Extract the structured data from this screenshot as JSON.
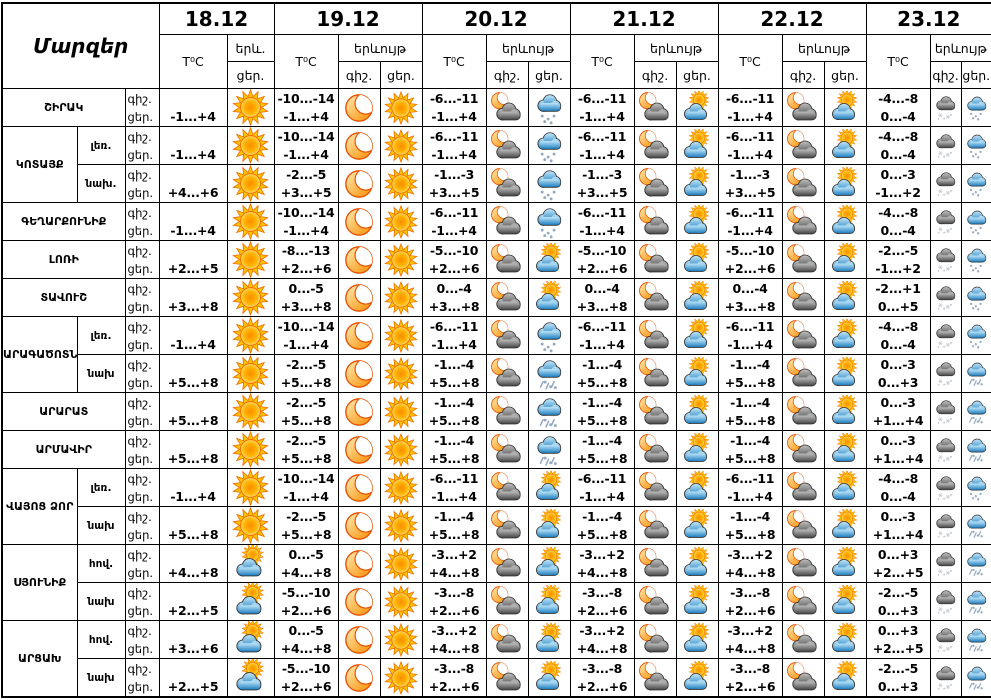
{
  "table": {
    "regions_label": "Մարզեր",
    "dates": [
      "18.12",
      "19.12",
      "20.12",
      "21.12",
      "22.12",
      "23.12"
    ],
    "temp_label": "T⁰C",
    "phenom_label": "երևույթ",
    "phenom_short": "երև.",
    "night_label": "գիշ.",
    "day_label": "ցեր.",
    "icon_legend": {
      "sun": "clear-sun",
      "moon": "clear-moon",
      "sun-cloud": "partly-cloudy-day",
      "moon-cloud": "partly-cloudy-night",
      "snow-blue": "snow-day-cloud",
      "sleet-blue": "sleet-day-cloud",
      "snow-dark": "snow-night-cloud"
    },
    "colors": {
      "sun": "#FFB300",
      "cloud_blue": "#2186C8",
      "cloud_dark": "#545454",
      "border": "#000000"
    },
    "groups": [
      {
        "region": "ՇԻՐԱԿ",
        "rows": [
          {
            "sub": "",
            "cells": [
              [
                "",
                "-1...+4",
                "",
                "sun"
              ],
              [
                "-10...-14",
                "-1...+4",
                "moon",
                "sun"
              ],
              [
                "-6...-11",
                "-1...+4",
                "moon-cloud",
                "snow-blue"
              ],
              [
                "-6...-11",
                "-1...+4",
                "moon-cloud",
                "sun-cloud"
              ],
              [
                "-6...-11",
                "-1...+4",
                "moon-cloud",
                "sun-cloud"
              ],
              [
                "-4...-8",
                "0...-4",
                "snow-dark",
                "snow-blue"
              ]
            ]
          }
        ]
      },
      {
        "region": "ԿՈՏԱՅՔ",
        "rows": [
          {
            "sub": "լեռ.",
            "cells": [
              [
                "",
                "-1...+4",
                "",
                "sun"
              ],
              [
                "-10...-14",
                "-1...+4",
                "moon",
                "sun"
              ],
              [
                "-6...-11",
                "-1...+4",
                "moon-cloud",
                "snow-blue"
              ],
              [
                "-6...-11",
                "-1...+4",
                "moon-cloud",
                "sun-cloud"
              ],
              [
                "-6...-11",
                "-1...+4",
                "moon-cloud",
                "sun-cloud"
              ],
              [
                "-4...-8",
                "0...-4",
                "snow-dark",
                "snow-blue"
              ]
            ]
          },
          {
            "sub": "նախ.",
            "cells": [
              [
                "",
                "+4...+6",
                "",
                "sun"
              ],
              [
                "-2...-5",
                "+3...+5",
                "moon",
                "sun"
              ],
              [
                "-1...-3",
                "+3...+5",
                "moon-cloud",
                "snow-blue"
              ],
              [
                "-1...-3",
                "+3...+5",
                "moon-cloud",
                "sun-cloud"
              ],
              [
                "-1...-3",
                "+3...+5",
                "moon-cloud",
                "sun-cloud"
              ],
              [
                "0...-3",
                "-1...+2",
                "snow-dark",
                "snow-blue"
              ]
            ]
          }
        ]
      },
      {
        "region": "ԳԵՂԱՐՔՈՒՆԻՔ",
        "rows": [
          {
            "sub": "",
            "cells": [
              [
                "",
                "-1...+4",
                "",
                "sun"
              ],
              [
                "-10...-14",
                "-1...+4",
                "moon",
                "sun"
              ],
              [
                "-6...-11",
                "-1...+4",
                "moon-cloud",
                "snow-blue"
              ],
              [
                "-6...-11",
                "-1...+4",
                "moon-cloud",
                "sun-cloud"
              ],
              [
                "-6...-11",
                "-1...+4",
                "moon-cloud",
                "sun-cloud"
              ],
              [
                "-4...-8",
                "0...-4",
                "snow-dark",
                "snow-blue"
              ]
            ]
          }
        ]
      },
      {
        "region": "ԼՈՌԻ",
        "rows": [
          {
            "sub": "",
            "cells": [
              [
                "",
                "+2...+5",
                "",
                "sun"
              ],
              [
                "-8...-13",
                "+2...+6",
                "moon",
                "sun"
              ],
              [
                "-5...-10",
                "+2...+6",
                "moon-cloud",
                "sun-cloud"
              ],
              [
                "-5...-10",
                "+2...+6",
                "moon-cloud",
                "sun-cloud"
              ],
              [
                "-5...-10",
                "+2...+6",
                "moon-cloud",
                "sun-cloud"
              ],
              [
                "-2...-5",
                "-1...+2",
                "snow-dark",
                "snow-blue"
              ]
            ]
          }
        ]
      },
      {
        "region": "ՏԱՎՈՒՇ",
        "rows": [
          {
            "sub": "",
            "cells": [
              [
                "",
                "+3...+8",
                "",
                "sun"
              ],
              [
                "0...-5",
                "+3...+8",
                "moon",
                "sun"
              ],
              [
                "0...-4",
                "+3...+8",
                "moon-cloud",
                "sun-cloud"
              ],
              [
                "0...-4",
                "+3...+8",
                "moon-cloud",
                "sun-cloud"
              ],
              [
                "0...-4",
                "+3...+8",
                "moon-cloud",
                "sun-cloud"
              ],
              [
                "-2...+1",
                "0...+5",
                "snow-dark",
                "snow-blue"
              ]
            ]
          }
        ]
      },
      {
        "region": "ԱՐԱԳԱԾՈՏՆ",
        "rows": [
          {
            "sub": "լեռ.",
            "cells": [
              [
                "",
                "-1...+4",
                "",
                "sun"
              ],
              [
                "-10...-14",
                "-1...+4",
                "moon",
                "sun"
              ],
              [
                "-6...-11",
                "-1...+4",
                "moon-cloud",
                "snow-blue"
              ],
              [
                "-6...-11",
                "-1...+4",
                "moon-cloud",
                "sun-cloud"
              ],
              [
                "-6...-11",
                "-1...+4",
                "moon-cloud",
                "sun-cloud"
              ],
              [
                "-4...-8",
                "0...-4",
                "snow-dark",
                "snow-blue"
              ]
            ]
          },
          {
            "sub": "նախ",
            "cells": [
              [
                "",
                "+5...+8",
                "",
                "sun"
              ],
              [
                "-2...-5",
                "+5...+8",
                "moon",
                "sun"
              ],
              [
                "-1...-4",
                "+5...+8",
                "moon-cloud",
                "sleet-blue"
              ],
              [
                "-1...-4",
                "+5...+8",
                "moon-cloud",
                "sun-cloud"
              ],
              [
                "-1...-4",
                "+5...+8",
                "moon-cloud",
                "sun-cloud"
              ],
              [
                "0...-3",
                "0...+3",
                "snow-dark",
                "sleet-blue"
              ]
            ]
          }
        ]
      },
      {
        "region": "ԱՐԱՐԱՏ",
        "rows": [
          {
            "sub": "",
            "cells": [
              [
                "",
                "+5...+8",
                "",
                "sun"
              ],
              [
                "-2...-5",
                "+5...+8",
                "moon",
                "sun"
              ],
              [
                "-1...-4",
                "+5...+8",
                "moon-cloud",
                "sleet-blue"
              ],
              [
                "-1...-4",
                "+5...+8",
                "moon-cloud",
                "sun-cloud"
              ],
              [
                "-1...-4",
                "+5...+8",
                "moon-cloud",
                "sun-cloud"
              ],
              [
                "0...-3",
                "+1...+4",
                "snow-dark",
                "sleet-blue"
              ]
            ]
          }
        ]
      },
      {
        "region": "ԱՐՄԱՎԻՐ",
        "rows": [
          {
            "sub": "",
            "cells": [
              [
                "",
                "+5...+8",
                "",
                "sun"
              ],
              [
                "-2...-5",
                "+5...+8",
                "moon",
                "sun"
              ],
              [
                "-1...-4",
                "+5...+8",
                "moon-cloud",
                "sleet-blue"
              ],
              [
                "-1...-4",
                "+5...+8",
                "moon-cloud",
                "sun-cloud"
              ],
              [
                "-1...-4",
                "+5...+8",
                "moon-cloud",
                "sun-cloud"
              ],
              [
                "0...-3",
                "+1...+4",
                "snow-dark",
                "sleet-blue"
              ]
            ]
          }
        ]
      },
      {
        "region": "ՎԱՅՈՑ ՁՈՐ",
        "rows": [
          {
            "sub": "լեռ.",
            "cells": [
              [
                "",
                "-1...+4",
                "",
                "sun"
              ],
              [
                "-10...-14",
                "-1...+4",
                "moon",
                "sun"
              ],
              [
                "-6...-11",
                "-1...+4",
                "moon-cloud",
                "sun-cloud"
              ],
              [
                "-6...-11",
                "-1...+4",
                "moon-cloud",
                "sun-cloud"
              ],
              [
                "-6...-11",
                "-1...+4",
                "moon-cloud",
                "sun-cloud"
              ],
              [
                "-4...-8",
                "0...-4",
                "snow-dark",
                "snow-blue"
              ]
            ]
          },
          {
            "sub": "նախ",
            "cells": [
              [
                "",
                "+5...+8",
                "",
                "sun"
              ],
              [
                "-2...-5",
                "+5...+8",
                "moon",
                "sun"
              ],
              [
                "-1...-4",
                "+5...+8",
                "moon-cloud",
                "sun-cloud"
              ],
              [
                "-1...-4",
                "+5...+8",
                "moon-cloud",
                "sun-cloud"
              ],
              [
                "-1...-4",
                "+5...+8",
                "moon-cloud",
                "sun-cloud"
              ],
              [
                "0...-3",
                "+1...+4",
                "snow-dark",
                "sleet-blue"
              ]
            ]
          }
        ]
      },
      {
        "region": "ՍՅՈՒՆԻՔ",
        "rows": [
          {
            "sub": "հով.",
            "cells": [
              [
                "",
                "+4...+8",
                "",
                "sun-cloud"
              ],
              [
                "0...-5",
                "+4...+8",
                "moon",
                "sun"
              ],
              [
                "-3...+2",
                "+4...+8",
                "moon-cloud",
                "sun-cloud"
              ],
              [
                "-3...+2",
                "+4...+8",
                "moon-cloud",
                "sun-cloud"
              ],
              [
                "-3...+2",
                "+4...+8",
                "moon-cloud",
                "sun-cloud"
              ],
              [
                "0...+3",
                "+2...+5",
                "snow-dark",
                "sleet-blue"
              ]
            ]
          },
          {
            "sub": "նախ",
            "cells": [
              [
                "",
                "+2...+5",
                "",
                "sun-cloud"
              ],
              [
                "-5...-10",
                "+2...+6",
                "moon",
                "sun"
              ],
              [
                "-3...-8",
                "+2...+6",
                "moon-cloud",
                "sun-cloud"
              ],
              [
                "-3...-8",
                "+2...+6",
                "moon-cloud",
                "sun-cloud"
              ],
              [
                "-3...-8",
                "+2...+6",
                "moon-cloud",
                "sun-cloud"
              ],
              [
                "-2...-5",
                "0...+3",
                "snow-dark",
                "sleet-blue"
              ]
            ]
          }
        ]
      },
      {
        "region": "ԱՐՑԱԽ",
        "rows": [
          {
            "sub": "հով.",
            "cells": [
              [
                "",
                "+3...+6",
                "",
                "sun-cloud"
              ],
              [
                "0...-5",
                "+4...+8",
                "moon",
                "sun"
              ],
              [
                "-3...+2",
                "+4...+8",
                "moon-cloud",
                "sun-cloud"
              ],
              [
                "-3...+2",
                "+4...+8",
                "moon-cloud",
                "sun-cloud"
              ],
              [
                "-3...+2",
                "+4...+8",
                "moon-cloud",
                "sun-cloud"
              ],
              [
                "0...+3",
                "+2...+5",
                "snow-dark",
                "sleet-blue"
              ]
            ]
          },
          {
            "sub": "նախ",
            "cells": [
              [
                "",
                "+2...+5",
                "",
                "sun-cloud"
              ],
              [
                "-5...-10",
                "+2...+6",
                "moon",
                "sun"
              ],
              [
                "-3...-8",
                "+2...+6",
                "moon-cloud",
                "sun-cloud"
              ],
              [
                "-3...-8",
                "+2...+6",
                "moon-cloud",
                "sun-cloud"
              ],
              [
                "-3...-8",
                "+2...+6",
                "moon-cloud",
                "sun-cloud"
              ],
              [
                "-2...-5",
                "0...+3",
                "snow-dark",
                "sleet-blue"
              ]
            ]
          }
        ]
      }
    ]
  }
}
